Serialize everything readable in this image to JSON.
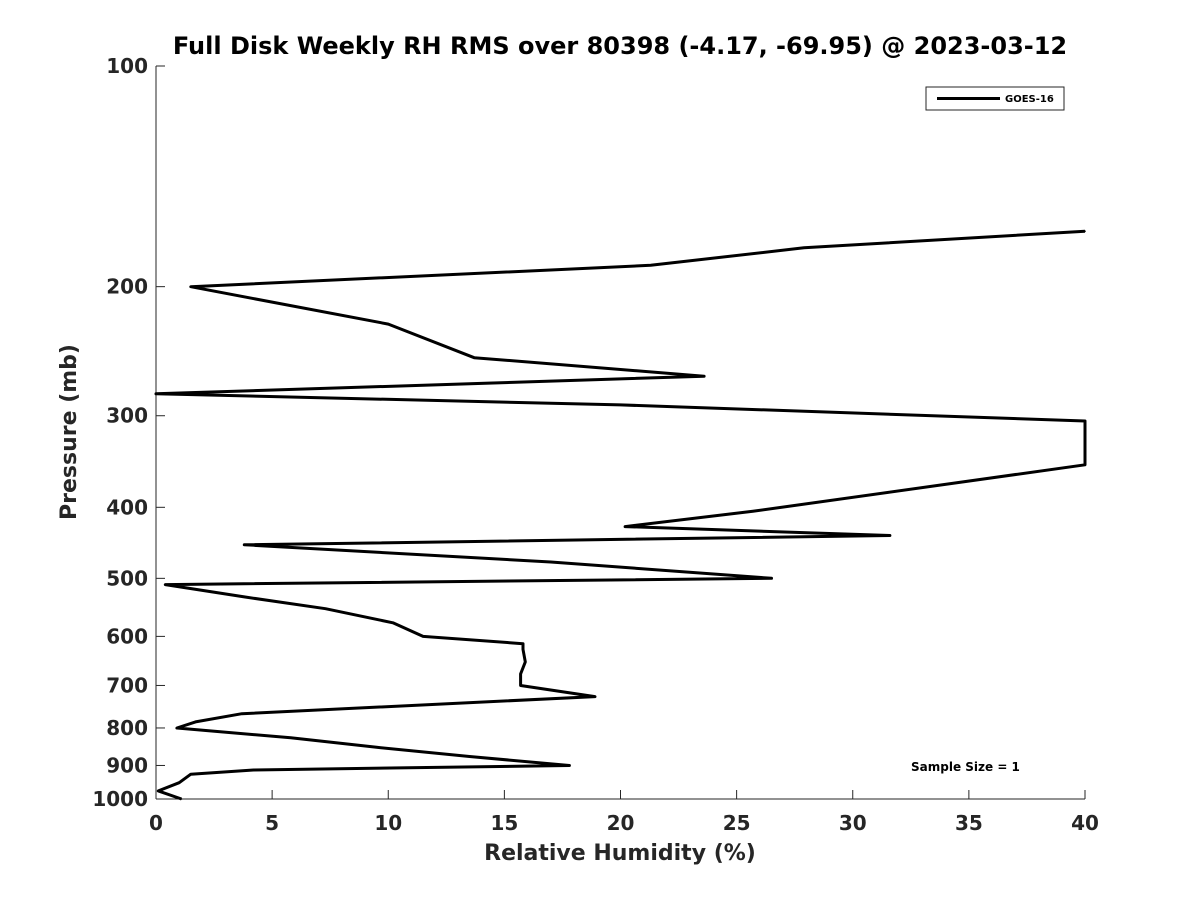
{
  "chart_data": {
    "type": "line",
    "title": "Full Disk Weekly RH RMS over 80398 (-4.17, -69.95) @ 2023-03-12",
    "xlabel": "Relative Humidity (%)",
    "ylabel": "Pressure (mb)",
    "xlim": [
      0,
      40
    ],
    "ylim": [
      100,
      1000
    ],
    "y_scale": "log",
    "y_reversed": true,
    "x_ticks": [
      "0",
      "5",
      "10",
      "15",
      "20",
      "25",
      "30",
      "35",
      "40"
    ],
    "y_ticks": [
      "100",
      "200",
      "300",
      "400",
      "500",
      "600",
      "700",
      "800",
      "900",
      "1000"
    ],
    "grid": false,
    "legend_position": "top-right",
    "annotation": "Sample Size = 1",
    "series": [
      {
        "name": "GOES-16",
        "color": "#000000",
        "points": [
          [
            1.1,
            1000
          ],
          [
            0.1,
            975
          ],
          [
            1.0,
            950
          ],
          [
            1.5,
            925
          ],
          [
            4.2,
            913
          ],
          [
            17.8,
            900
          ],
          [
            13.5,
            875
          ],
          [
            9.5,
            850
          ],
          [
            5.8,
            825
          ],
          [
            0.9,
            800
          ],
          [
            1.7,
            785
          ],
          [
            3.7,
            765
          ],
          [
            18.9,
            725
          ],
          [
            15.7,
            700
          ],
          [
            15.7,
            675
          ],
          [
            15.9,
            650
          ],
          [
            15.8,
            625
          ],
          [
            15.8,
            614
          ],
          [
            11.5,
            600
          ],
          [
            10.2,
            575
          ],
          [
            7.3,
            550
          ],
          [
            3.8,
            530
          ],
          [
            0.4,
            510
          ],
          [
            26.5,
            500
          ],
          [
            17.0,
            475
          ],
          [
            3.8,
            450
          ],
          [
            31.6,
            437
          ],
          [
            20.2,
            425
          ],
          [
            25.7,
            405
          ],
          [
            40.0,
            350
          ],
          [
            40.0,
            305
          ],
          [
            20.0,
            290
          ],
          [
            0.0,
            280
          ],
          [
            23.6,
            265
          ],
          [
            13.7,
            250
          ],
          [
            10.0,
            225
          ],
          [
            1.5,
            200
          ],
          [
            21.3,
            187
          ],
          [
            27.9,
            177
          ],
          [
            40.0,
            168
          ]
        ]
      }
    ]
  }
}
